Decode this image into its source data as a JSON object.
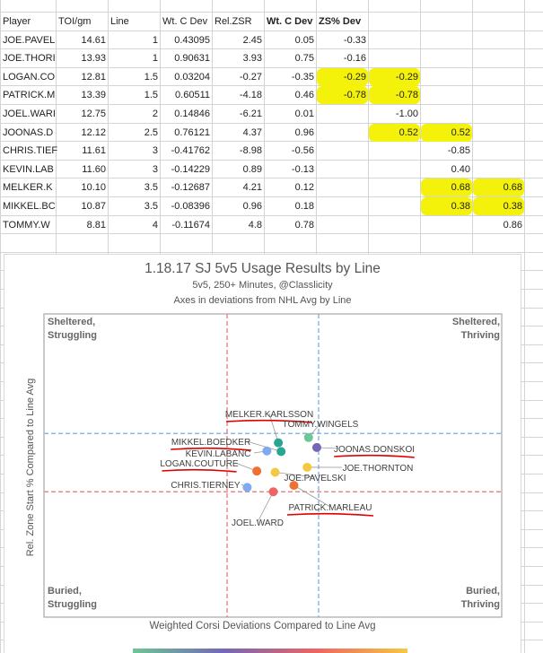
{
  "sheet": {
    "headers": [
      "Player",
      "TOI/gm",
      "Line",
      "Wt. C Dev",
      "Rel.ZSR",
      "Wt. C Dev",
      "ZS% Dev",
      "",
      "",
      "",
      ""
    ],
    "bold_headers": [
      5,
      6
    ],
    "rows": [
      [
        "JOE.PAVEL",
        "14.61",
        "1",
        "0.43095",
        "2.45",
        "0.05",
        "-0.33",
        "",
        "",
        "",
        ""
      ],
      [
        "JOE.THORI",
        "13.93",
        "1",
        "0.90631",
        "3.93",
        "0.75",
        "-0.16",
        "",
        "",
        "",
        ""
      ],
      [
        "LOGAN.CO",
        "12.81",
        "1.5",
        "0.03204",
        "-0.27",
        "-0.35",
        "-0.29",
        "-0.29",
        "",
        "",
        ""
      ],
      [
        "PATRICK.M",
        "13.39",
        "1.5",
        "0.60511",
        "-4.18",
        "0.46",
        "-0.78",
        "-0.78",
        "",
        "",
        ""
      ],
      [
        "JOEL.WARI",
        "12.75",
        "2",
        "0.14846",
        "-6.21",
        "0.01",
        "",
        "-1.00",
        "",
        "",
        ""
      ],
      [
        "JOONAS.D",
        "12.12",
        "2.5",
        "0.76121",
        "4.37",
        "0.96",
        "",
        "0.52",
        "0.52",
        "",
        ""
      ],
      [
        "CHRIS.TIEF",
        "11.61",
        "3",
        "-0.41762",
        "-8.98",
        "-0.56",
        "",
        "",
        "-0.85",
        "",
        ""
      ],
      [
        "KEVIN.LAB",
        "11.60",
        "3",
        "-0.14229",
        "0.89",
        "-0.13",
        "",
        "",
        "0.40",
        "",
        ""
      ],
      [
        "MELKER.K",
        "10.10",
        "3.5",
        "-0.12687",
        "4.21",
        "0.12",
        "",
        "",
        "0.68",
        "0.68",
        ""
      ],
      [
        "MIKKEL.BC",
        "10.87",
        "3.5",
        "-0.08396",
        "0.96",
        "0.18",
        "",
        "",
        "0.38",
        "0.38",
        ""
      ],
      [
        "TOMMY.W",
        "8.81",
        "4",
        "-0.11674",
        "4.8",
        "0.78",
        "",
        "",
        "",
        "0.86",
        ""
      ]
    ],
    "highlighted": [
      [
        2,
        6
      ],
      [
        2,
        7
      ],
      [
        3,
        6
      ],
      [
        3,
        7
      ],
      [
        5,
        7
      ],
      [
        5,
        8
      ],
      [
        8,
        8
      ],
      [
        8,
        9
      ],
      [
        9,
        8
      ],
      [
        9,
        9
      ]
    ],
    "highlight_color": "#f4f10a"
  },
  "chart_data": {
    "type": "scatter",
    "title": "1.18.17 SJ 5v5 Usage Results by Line",
    "subtitle": "5v5, 250+ Minutes, @Classlicity",
    "subtitle2": "Axes in deviations from NHL Avg by Line",
    "xlabel": "Weighted Corsi Deviations Compared to Line Avg",
    "ylabel": "Rel. Zone Start % Compared to Line Avg",
    "xlim": [
      -5,
      5
    ],
    "ylim": [
      -5.3,
      5.1
    ],
    "grid": false,
    "quadrants": {
      "top_left": [
        "Sheltered,",
        "Struggling"
      ],
      "top_right": [
        "Sheltered,",
        "Thriving"
      ],
      "bottom_left": [
        "Buried,",
        "Struggling"
      ],
      "bottom_right": [
        "Buried,",
        "Thriving"
      ]
    },
    "reference_lines": [
      {
        "axis": "x",
        "value": -1,
        "color": "#e88a8a"
      },
      {
        "axis": "x",
        "value": 1,
        "color": "#8ab8e0"
      },
      {
        "axis": "y",
        "value": 1,
        "color": "#8ab8e0"
      },
      {
        "axis": "y",
        "value": -1,
        "color": "#e88a8a"
      }
    ],
    "points": [
      {
        "label": "JOE.PAVELSKI",
        "line": "1",
        "x": 0.05,
        "y": -0.33,
        "color": "#f5c842",
        "underlined": false
      },
      {
        "label": "JOE.THORNTON",
        "line": "1",
        "x": 0.75,
        "y": -0.16,
        "color": "#f5c842",
        "underlined": false
      },
      {
        "label": "LOGAN.COUTURE",
        "line": "1.5",
        "x": -0.35,
        "y": -0.29,
        "color": "#f07033",
        "underlined": true
      },
      {
        "label": "PATRICK.MARLEAU",
        "line": "1.5",
        "x": 0.46,
        "y": -0.78,
        "color": "#f07033",
        "underlined": true
      },
      {
        "label": "JOEL.WARD",
        "line": "2",
        "x": 0.01,
        "y": -1.0,
        "color": "#ee6462",
        "underlined": false
      },
      {
        "label": "JOONAS.DONSKOI",
        "line": "2.5",
        "x": 0.96,
        "y": 0.52,
        "color": "#7467b8",
        "underlined": true
      },
      {
        "label": "CHRIS.TIERNEY",
        "line": "3",
        "x": -0.56,
        "y": -0.85,
        "color": "#7eaaf0",
        "underlined": false
      },
      {
        "label": "KEVIN.LABANC",
        "line": "3",
        "x": -0.13,
        "y": 0.4,
        "color": "#7eaaf0",
        "underlined": false
      },
      {
        "label": "MELKER.KARLSSON",
        "line": "3.5",
        "x": 0.12,
        "y": 0.68,
        "color": "#2aa58f",
        "underlined": true
      },
      {
        "label": "MIKKEL.BOEDKER",
        "line": "3.5",
        "x": 0.18,
        "y": 0.38,
        "color": "#2aa58f",
        "underlined": true
      },
      {
        "label": "TOMMY.WINGELS",
        "line": "4",
        "x": 0.78,
        "y": 0.86,
        "color": "#6cc695",
        "underlined": false
      }
    ],
    "annotation_color": "#e00000"
  }
}
